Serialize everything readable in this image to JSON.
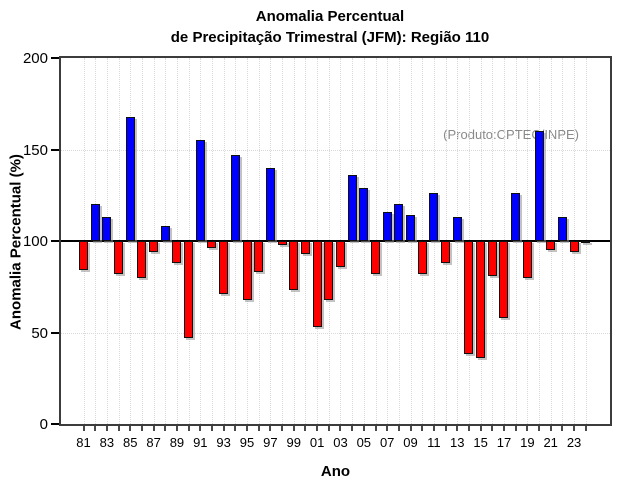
{
  "title": {
    "line1": "Anomalia Percentual",
    "line2": "de Precipitação Trimestral (JFM): Região 110"
  },
  "annotation": "(Produto:CPTEC/INPE)",
  "chart_data": {
    "type": "bar",
    "title": "Anomalia Percentual de Precipitação Trimestral (JFM): Região 110",
    "xlabel": "Ano",
    "ylabel": "Anomalia Percentual (%)",
    "ylim": [
      0,
      200
    ],
    "yticks": [
      0,
      50,
      100,
      150,
      200
    ],
    "grid_y": [
      50,
      150
    ],
    "baseline": 100,
    "grid": true,
    "legend_position": "none",
    "x_label_every": 2,
    "categories": [
      "81",
      "82",
      "83",
      "84",
      "85",
      "86",
      "87",
      "88",
      "89",
      "90",
      "91",
      "92",
      "93",
      "94",
      "95",
      "96",
      "97",
      "98",
      "99",
      "00",
      "01",
      "02",
      "03",
      "04",
      "05",
      "06",
      "07",
      "08",
      "09",
      "10",
      "11",
      "12",
      "13",
      "14",
      "15",
      "16",
      "17",
      "18",
      "19",
      "20",
      "21",
      "22",
      "23",
      "24"
    ],
    "values": [
      84,
      120,
      113,
      82,
      168,
      80,
      94,
      108,
      88,
      47,
      155,
      96,
      71,
      147,
      68,
      83,
      140,
      98,
      73,
      93,
      53,
      68,
      86,
      136,
      129,
      82,
      116,
      120,
      114,
      82,
      126,
      88,
      113,
      38,
      36,
      81,
      58,
      126,
      80,
      160,
      95,
      113,
      94,
      99
    ],
    "colors": {
      "above_baseline": "#0000ff",
      "below_baseline": "#ff0000",
      "annotation_text": "#8a8a8a",
      "grid": "#d9d9d9",
      "axis": "#3c3c3c"
    }
  }
}
